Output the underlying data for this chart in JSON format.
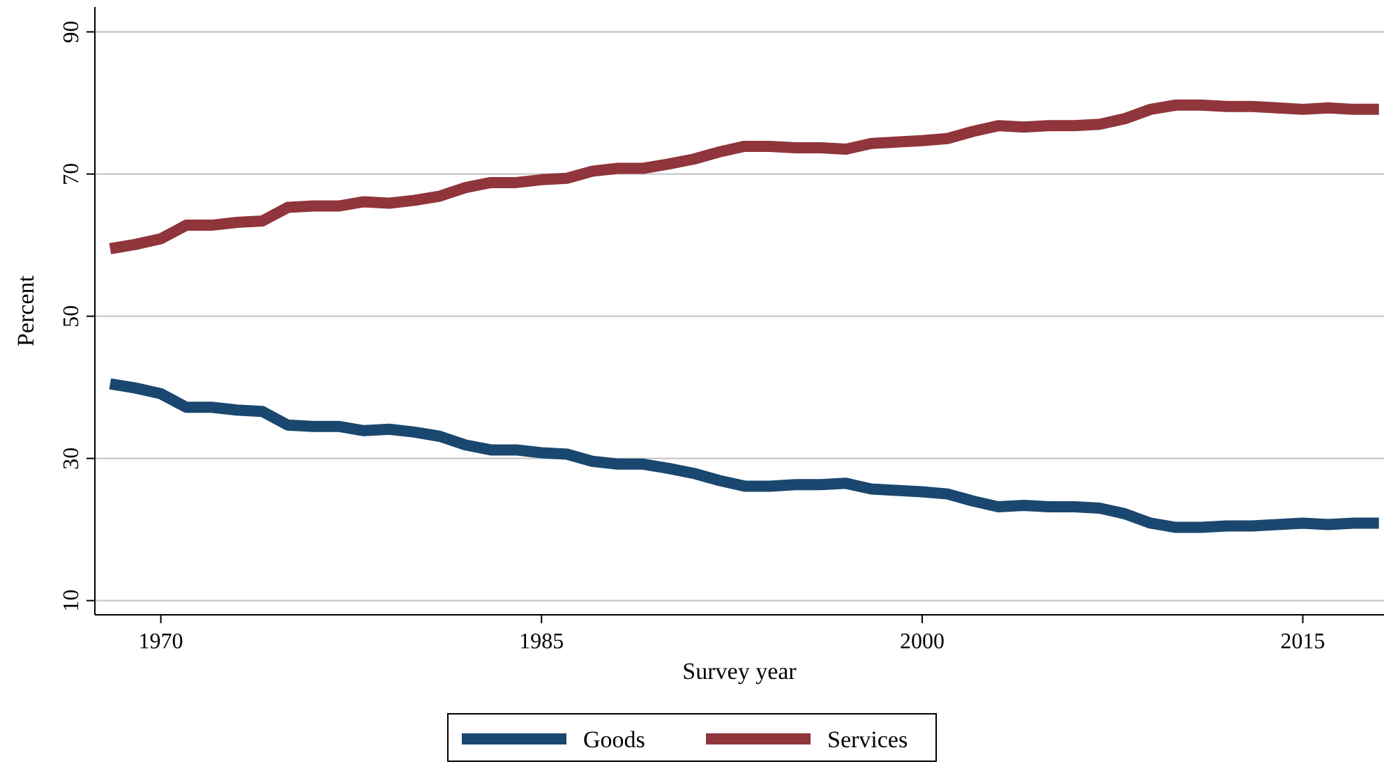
{
  "chart_data": {
    "type": "line",
    "xlabel": "Survey year",
    "ylabel": "Percent",
    "x": [
      1968,
      1969,
      1970,
      1971,
      1972,
      1973,
      1974,
      1975,
      1976,
      1977,
      1978,
      1979,
      1980,
      1981,
      1982,
      1983,
      1984,
      1985,
      1986,
      1987,
      1988,
      1989,
      1990,
      1991,
      1992,
      1993,
      1994,
      1995,
      1996,
      1997,
      1998,
      1999,
      2000,
      2001,
      2002,
      2003,
      2004,
      2005,
      2006,
      2007,
      2008,
      2009,
      2010,
      2011,
      2012,
      2013,
      2014,
      2015,
      2016,
      2017,
      2018
    ],
    "series": [
      {
        "name": "Goods",
        "color": "#1a476f",
        "values": [
          40.5,
          39.9,
          39.1,
          37.2,
          37.2,
          36.8,
          36.6,
          34.7,
          34.5,
          34.5,
          33.9,
          34.1,
          33.7,
          33.1,
          31.9,
          31.2,
          31.2,
          30.8,
          30.6,
          29.6,
          29.2,
          29.2,
          28.6,
          27.9,
          26.9,
          26.1,
          26.1,
          26.3,
          26.3,
          26.5,
          25.7,
          25.5,
          25.3,
          25.0,
          24.0,
          23.2,
          23.4,
          23.2,
          23.2,
          23.0,
          22.2,
          20.9,
          20.3,
          20.3,
          20.5,
          20.5,
          20.7,
          20.9,
          20.7,
          20.9,
          20.9
        ]
      },
      {
        "name": "Services",
        "color": "#90353b",
        "values": [
          59.5,
          60.1,
          60.9,
          62.8,
          62.8,
          63.2,
          63.4,
          65.3,
          65.5,
          65.5,
          66.1,
          65.9,
          66.3,
          66.9,
          68.1,
          68.8,
          68.8,
          69.2,
          69.4,
          70.4,
          70.8,
          70.8,
          71.4,
          72.1,
          73.1,
          73.9,
          73.9,
          73.7,
          73.7,
          73.5,
          74.3,
          74.5,
          74.7,
          75.0,
          76.0,
          76.8,
          76.6,
          76.8,
          76.8,
          77.0,
          77.8,
          79.1,
          79.7,
          79.7,
          79.5,
          79.5,
          79.3,
          79.1,
          79.3,
          79.1,
          79.1
        ]
      }
    ],
    "xlim": [
      1967.4,
      2018.2
    ],
    "xticks": [
      1970,
      1985,
      2000,
      2015
    ],
    "ylim": [
      8,
      93.5
    ],
    "yticks": [
      10,
      30,
      50,
      70,
      90
    ],
    "grid": "y",
    "legend": "bottom",
    "marker": "none",
    "line_style": "solid"
  }
}
